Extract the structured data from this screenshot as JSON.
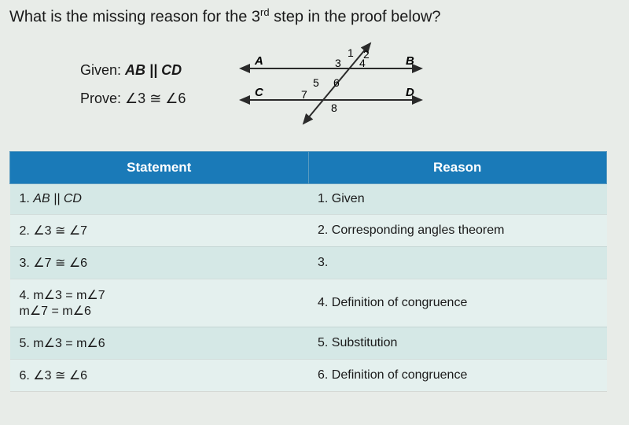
{
  "question": {
    "prefix": "What is the missing reason for the 3",
    "ord": "rd",
    "suffix": " step in the proof below?"
  },
  "given": {
    "label": "Given:",
    "text": "AB || CD"
  },
  "prove": {
    "label": "Prove:",
    "text": "∠3 ≅ ∠6"
  },
  "diagram": {
    "points": {
      "A": "A",
      "B": "B",
      "C": "C",
      "D": "D"
    },
    "angles": [
      "1",
      "2",
      "3",
      "4",
      "5",
      "6",
      "7",
      "8"
    ],
    "line_color": "#2a2a2a",
    "arrow_color": "#2a2a2a",
    "font_size": 15
  },
  "table": {
    "headers": {
      "statement": "Statement",
      "reason": "Reason"
    },
    "rows": [
      {
        "n": "1.",
        "statement": "AB || CD",
        "reason": "Given",
        "italic": true
      },
      {
        "n": "2.",
        "statement": "∠3 ≅ ∠7",
        "reason": "Corresponding angles theorem"
      },
      {
        "n": "3.",
        "statement": "∠7 ≅ ∠6",
        "reason": ""
      },
      {
        "n": "4.",
        "statement": "m∠3 = m∠7\nm∠7 = m∠6",
        "reason": "Definition of congruence"
      },
      {
        "n": "5.",
        "statement": "m∠3 = m∠6",
        "reason": "Substitution"
      },
      {
        "n": "6.",
        "statement": "∠3 ≅ ∠6",
        "reason": "Definition of congruence"
      }
    ]
  },
  "colors": {
    "header_bg": "#1a7ab8",
    "row_odd": "#d5e8e6",
    "row_even": "#e4f0ee",
    "page_bg": "#e8ece8"
  }
}
